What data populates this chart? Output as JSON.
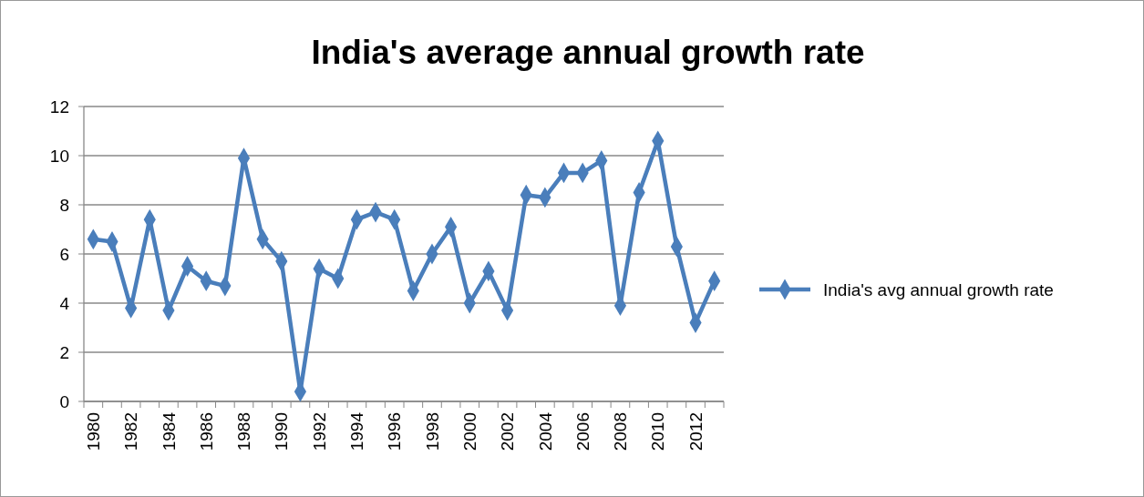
{
  "chart_data": {
    "type": "line",
    "title": "India's average annual growth rate",
    "categories": [
      "1980",
      null,
      "1982",
      null,
      "1984",
      null,
      "1986",
      null,
      "1988",
      null,
      "1990",
      null,
      "1992",
      null,
      "1994",
      null,
      "1996",
      null,
      "1998",
      null,
      "2000",
      null,
      "2002",
      null,
      "2004",
      null,
      "2006",
      null,
      "2008",
      null,
      "2010",
      null,
      "2012",
      null
    ],
    "series": [
      {
        "name": "India's avg annual growth rate",
        "color": "#4a7ebb",
        "values": [
          6.6,
          6.5,
          3.8,
          7.4,
          3.7,
          5.5,
          4.9,
          4.7,
          9.9,
          6.6,
          5.7,
          0.4,
          5.4,
          5.0,
          7.4,
          7.7,
          7.4,
          4.5,
          6.0,
          7.1,
          4.0,
          5.3,
          3.7,
          8.4,
          8.3,
          9.3,
          9.3,
          9.8,
          3.9,
          8.5,
          10.6,
          6.3,
          3.2,
          4.9
        ]
      }
    ],
    "ylim": [
      0,
      12
    ],
    "yticks": [
      0,
      2,
      4,
      6,
      8,
      10,
      12
    ],
    "grid": "y",
    "legend": "right",
    "marker": "diamond",
    "line_style": "solid"
  }
}
